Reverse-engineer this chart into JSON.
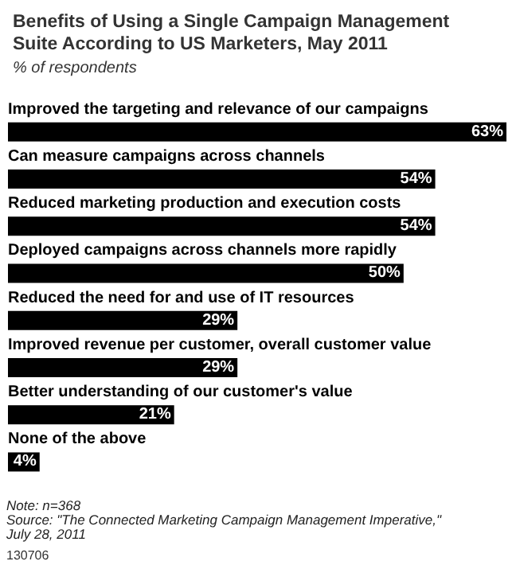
{
  "chart_data": {
    "type": "bar",
    "orientation": "horizontal",
    "title": "Benefits of Using a Single Campaign Management Suite According to US Marketers, May 2011",
    "subtitle": "% of respondents",
    "categories": [
      "Improved the targeting and relevance of our campaigns",
      "Can measure campaigns across channels",
      "Reduced marketing production and execution costs",
      "Deployed campaigns across channels more rapidly",
      "Reduced the need for and use of IT resources",
      "Improved revenue per customer, overall customer value",
      "Better understanding of our customer's value",
      "None of the above"
    ],
    "values": [
      63,
      54,
      54,
      50,
      29,
      29,
      21,
      4
    ],
    "value_labels": [
      "63%",
      "54%",
      "54%",
      "50%",
      "29%",
      "29%",
      "21%",
      "4%"
    ],
    "color": "#000000",
    "annotations": [
      "Note: n=368",
      "Source: \"The Connected Marketing Campaign Management Imperative,\" July 28, 2011",
      "130706"
    ]
  }
}
